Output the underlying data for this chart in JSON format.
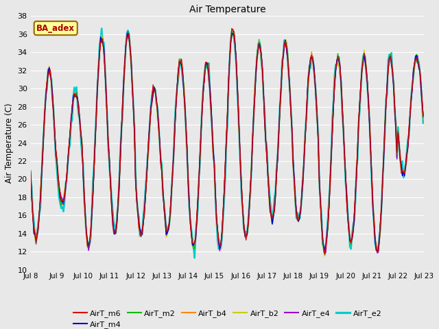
{
  "title": "Air Temperature",
  "ylabel": "Air Temperature (C)",
  "ylim": [
    10,
    38
  ],
  "yticks": [
    10,
    12,
    14,
    16,
    18,
    20,
    22,
    24,
    26,
    28,
    30,
    32,
    34,
    36,
    38
  ],
  "bg_color": "#e8e8e8",
  "grid_color": "#ffffff",
  "series_colors": {
    "AirT_m6": "#dd0000",
    "AirT_m4": "#0000cc",
    "AirT_m2": "#00bb00",
    "AirT_b4": "#ff8800",
    "AirT_b2": "#cccc00",
    "AirT_e4": "#9900cc",
    "AirT_e2": "#00cccc"
  },
  "series_lw": {
    "AirT_m6": 1.0,
    "AirT_m4": 1.0,
    "AirT_m2": 1.0,
    "AirT_b4": 1.0,
    "AirT_b2": 1.0,
    "AirT_e4": 1.0,
    "AirT_e2": 1.8
  },
  "annotation_text": "BA_adex",
  "annotation_color": "#aa0000",
  "annotation_bg": "#ffff99",
  "annotation_border": "#996600",
  "day_maxes": [
    32,
    29.5,
    35.5,
    36,
    30,
    33,
    33,
    36.5,
    35,
    35,
    33.5,
    33.5,
    33.5,
    33.5,
    33.5
  ],
  "day_mins": [
    13.5,
    17.5,
    12.5,
    14,
    14,
    14,
    12.5,
    12.5,
    13.5,
    15.5,
    15.5,
    12,
    13,
    12,
    20.5
  ],
  "e2_day_maxes": [
    32,
    29.5,
    36,
    36,
    30,
    33,
    33,
    36.5,
    35,
    35,
    33.5,
    33.5,
    33.5,
    33.5,
    33.5
  ],
  "e2_day_mins": [
    13.5,
    16.5,
    12.5,
    14.5,
    14,
    14,
    12.5,
    12,
    13.5,
    16,
    15.5,
    12,
    13,
    12,
    20.5
  ]
}
